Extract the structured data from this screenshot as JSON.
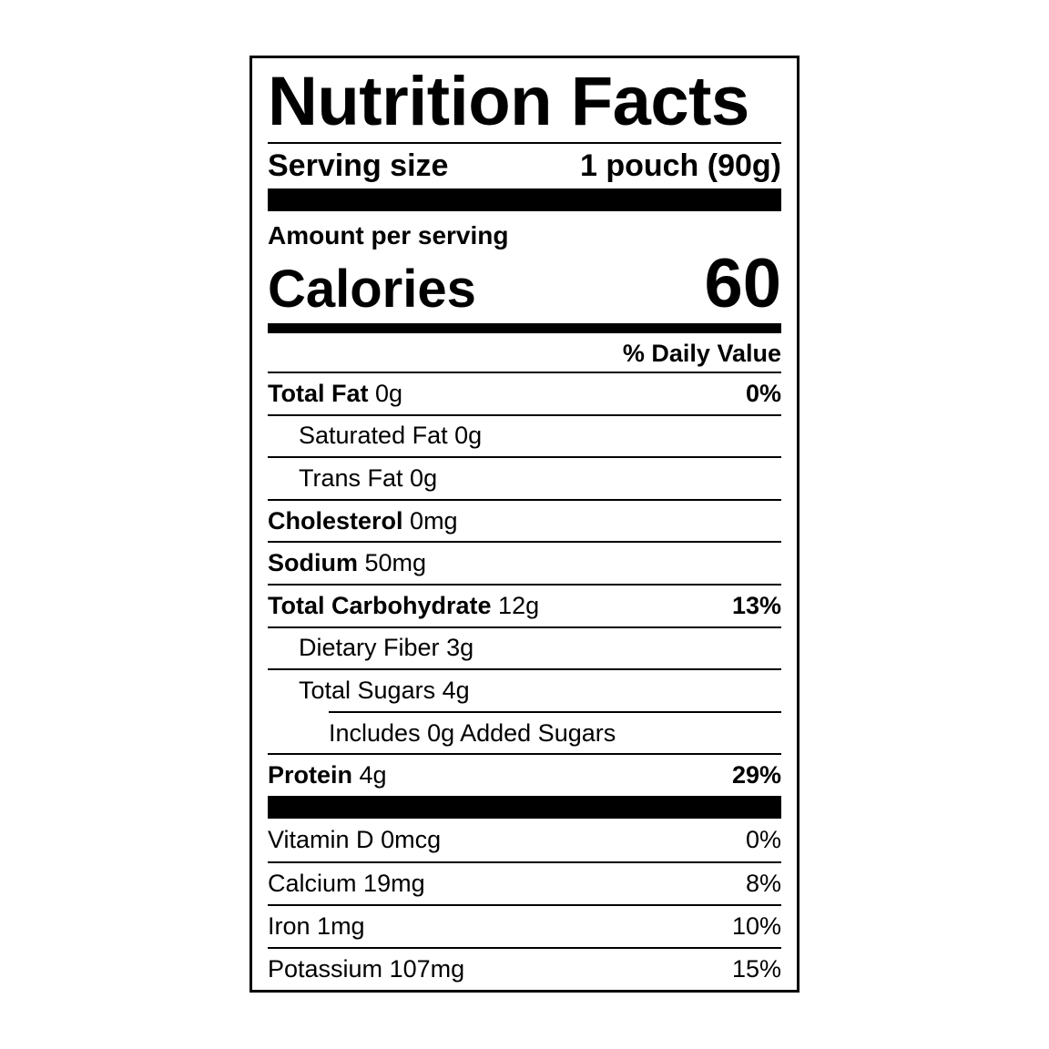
{
  "title": "Nutrition Facts",
  "serving": {
    "label": "Serving size",
    "value": "1 pouch (90g)"
  },
  "amount_per_serving": "Amount per serving",
  "calories": {
    "label": "Calories",
    "value": 60
  },
  "daily_value_header": "% Daily Value",
  "nutrients": [
    {
      "name": "Total Fat",
      "amount": "0g",
      "dv": "0%",
      "bold": true,
      "indent": 0
    },
    {
      "name": "Saturated Fat",
      "amount": "0g",
      "bold": false,
      "indent": 1
    },
    {
      "name": "Trans Fat",
      "amount": "0g",
      "bold": false,
      "indent": 1
    },
    {
      "name": "Cholesterol",
      "amount": "0mg",
      "bold": true,
      "indent": 0
    },
    {
      "name": "Sodium",
      "amount": "50mg",
      "bold": true,
      "indent": 0
    },
    {
      "name": "Total Carbohydrate",
      "amount": "12g",
      "dv": "13%",
      "bold": true,
      "indent": 0
    },
    {
      "name": "Dietary Fiber",
      "amount": "3g",
      "bold": false,
      "indent": 1
    },
    {
      "name": "Total Sugars",
      "amount": "4g",
      "bold": false,
      "indent": 1
    },
    {
      "name": "Includes 0g Added Sugars",
      "bold": false,
      "indent": 2
    },
    {
      "name": "Protein",
      "amount": "4g",
      "dv": "29%",
      "bold": true,
      "indent": 0
    }
  ],
  "vitamins": [
    {
      "name": "Vitamin D",
      "amount": "0mcg",
      "dv": "0%"
    },
    {
      "name": "Calcium",
      "amount": "19mg",
      "dv": "8%"
    },
    {
      "name": "Iron",
      "amount": "1mg",
      "dv": "10%"
    },
    {
      "name": "Potassium",
      "amount": "107mg",
      "dv": "15%"
    }
  ]
}
